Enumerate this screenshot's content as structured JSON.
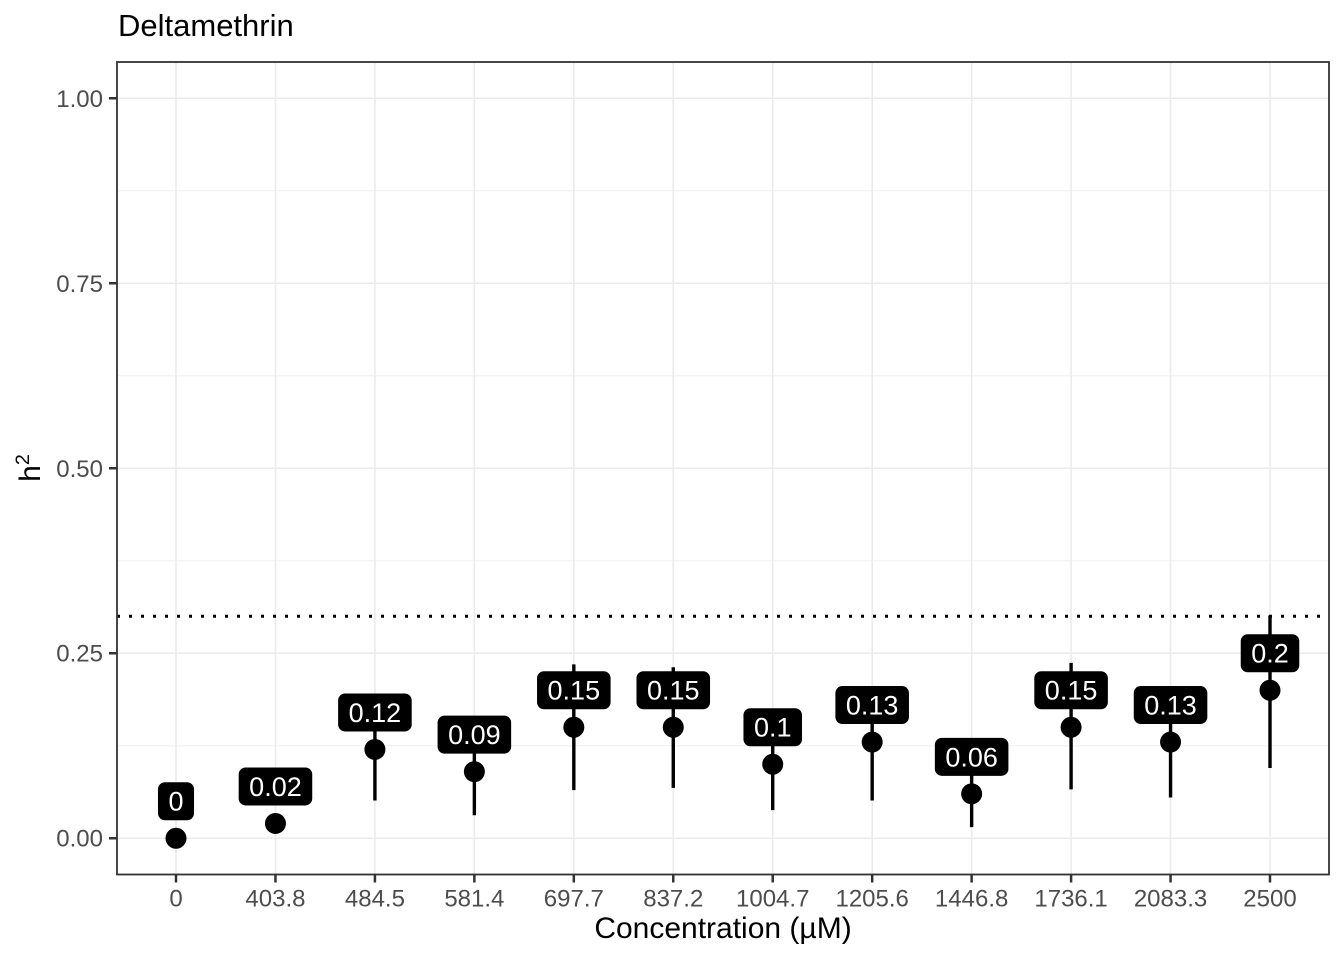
{
  "chart_data": {
    "type": "pointrange",
    "title": "Deltamethrin",
    "xlabel": "Concentration (µM)",
    "ylabel": "h²",
    "ylabel_base": "h",
    "ylabel_sup": "2",
    "categories": [
      "0",
      "403.8",
      "484.5",
      "581.4",
      "697.7",
      "837.2",
      "1004.7",
      "1205.6",
      "1446.8",
      "1736.1",
      "2083.3",
      "2500"
    ],
    "values": [
      0,
      0.02,
      0.12,
      0.09,
      0.15,
      0.15,
      0.1,
      0.13,
      0.06,
      0.15,
      0.13,
      0.2
    ],
    "lower": [
      0,
      0.02,
      0.051,
      0.031,
      0.065,
      0.068,
      0.038,
      0.051,
      0.015,
      0.066,
      0.055,
      0.095
    ],
    "upper": [
      0,
      0.02,
      0.19,
      0.15,
      0.235,
      0.231,
      0.16,
      0.2,
      0.11,
      0.237,
      0.2,
      0.301
    ],
    "point_labels": [
      "0",
      "0.02",
      "0.12",
      "0.09",
      "0.15",
      "0.15",
      "0.1",
      "0.13",
      "0.06",
      "0.15",
      "0.13",
      "0.2"
    ],
    "label_offset": 0.05,
    "ytick_labels": [
      "0.00",
      "0.25",
      "0.50",
      "0.75",
      "1.00"
    ],
    "ytick_values": [
      0,
      0.25,
      0.5,
      0.75,
      1.0
    ],
    "yminor_values": [
      0.125,
      0.375,
      0.625,
      0.875
    ],
    "ylim": [
      -0.049,
      1.049
    ],
    "threshold_line": 0.3,
    "grid": true,
    "legend": "none",
    "colors": {
      "point": "#000000",
      "range_line": "#000000",
      "label_bg": "#000000",
      "label_text": "#ffffff",
      "grid_major": "#ebebeb",
      "grid_minor": "#f0f0f0",
      "panel_border": "#333333",
      "tick": "#333333",
      "tick_label": "#4d4d4d",
      "threshold": "#000000",
      "background": "#ffffff"
    }
  }
}
